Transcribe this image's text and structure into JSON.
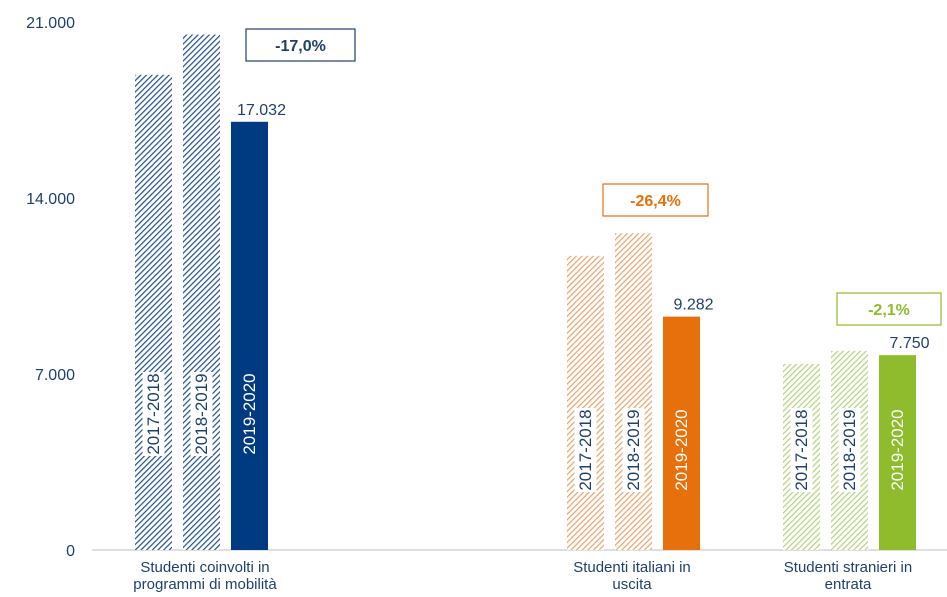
{
  "chart_data": {
    "type": "bar",
    "ylim": [
      0,
      21000
    ],
    "yticks": [
      {
        "value": 0,
        "label": "0"
      },
      {
        "value": 7000,
        "label": "7.000"
      },
      {
        "value": 14000,
        "label": "14.000"
      },
      {
        "value": 21000,
        "label": "21.000"
      }
    ],
    "grid": false,
    "groups": [
      {
        "key": "mobilita",
        "category_lines": [
          "Studenti coinvolti in",
          "programmi di mobilità"
        ],
        "color": "#1f4e8c",
        "solid_color": "#003a80",
        "change_label": "-17,0%",
        "change_color": "#1f3f6e",
        "bars": [
          {
            "year": "2017-2018",
            "value": 18900,
            "shown_value": ""
          },
          {
            "year": "2018-2019",
            "value": 20500,
            "shown_value": ""
          },
          {
            "year": "2019-2020",
            "value": 17032,
            "shown_value": "17.032"
          }
        ]
      },
      {
        "key": "uscita",
        "category_lines": [
          "Studenti italiani in",
          "uscita"
        ],
        "color": "#e8a36a",
        "solid_color": "#e8700c",
        "change_label": "-26,4%",
        "change_color": "#e8700c",
        "bars": [
          {
            "year": "2017-2018",
            "value": 11700,
            "shown_value": ""
          },
          {
            "year": "2018-2019",
            "value": 12600,
            "shown_value": ""
          },
          {
            "year": "2019-2020",
            "value": 9282,
            "shown_value": "9.282"
          }
        ]
      },
      {
        "key": "entrata",
        "category_lines": [
          "Studenti stranieri in",
          "entrata"
        ],
        "color": "#b5d27a",
        "solid_color": "#8fbc2c",
        "change_label": "-2,1%",
        "change_color": "#8fbc2c",
        "bars": [
          {
            "year": "2017-2018",
            "value": 7400,
            "shown_value": ""
          },
          {
            "year": "2018-2019",
            "value": 7920,
            "shown_value": ""
          },
          {
            "year": "2019-2020",
            "value": 7750,
            "shown_value": "7.750"
          }
        ]
      }
    ]
  }
}
